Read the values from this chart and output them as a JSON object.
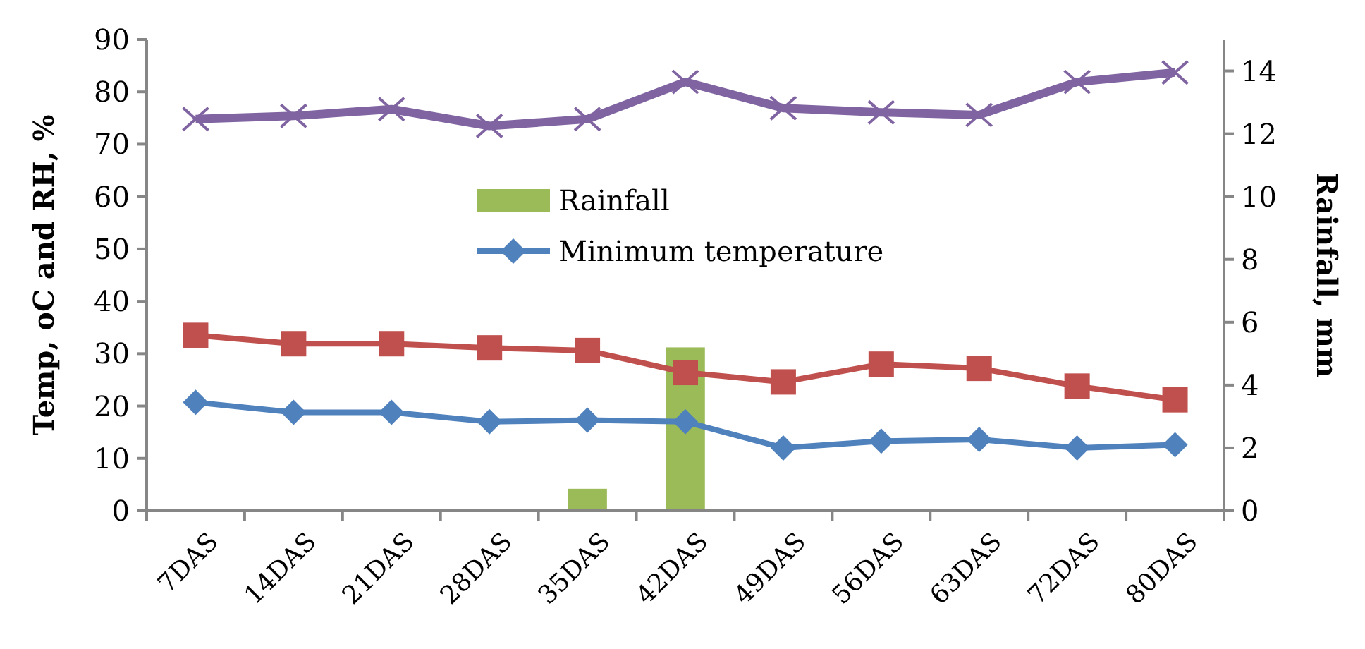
{
  "chart_data": {
    "type": "line",
    "categories": [
      "7DAS",
      "14DAS",
      "21DAS",
      "28DAS",
      "35DAS",
      "42DAS",
      "49DAS",
      "56DAS",
      "63DAS",
      "72DAS",
      "80DAS"
    ],
    "ylabel": "Temp, oC and RH, %",
    "y2label": "Rainfall, mm",
    "ylim": [
      0,
      90
    ],
    "yticks": [
      0,
      10,
      20,
      30,
      40,
      50,
      60,
      70,
      80,
      90
    ],
    "y2lim": [
      0,
      15
    ],
    "y2ticks": [
      0,
      2,
      4,
      6,
      8,
      10,
      12,
      14
    ],
    "legend": "top",
    "grid": false,
    "series": [
      {
        "name": "Rainfall",
        "type": "bar",
        "axis": "y2",
        "color": "#9bbb59",
        "values": [
          0,
          0,
          0,
          0,
          0.7,
          5.2,
          0,
          0,
          0,
          0,
          0
        ]
      },
      {
        "name": "Minimum temperature",
        "color": "#4f81bd",
        "marker": "diamond",
        "values": [
          20.7,
          18.8,
          18.8,
          17.0,
          17.3,
          17.0,
          12.0,
          13.3,
          13.6,
          12.0,
          12.6
        ]
      },
      {
        "color": "#c0504d",
        "marker": "square",
        "values": [
          33.5,
          31.9,
          31.9,
          31.1,
          30.6,
          26.4,
          24.6,
          28.0,
          27.2,
          23.8,
          21.2
        ]
      },
      {
        "color": "#8064a2",
        "marker": "cross",
        "values": [
          74.8,
          75.4,
          76.7,
          73.5,
          74.8,
          81.9,
          76.9,
          76.1,
          75.6,
          81.9,
          83.7
        ]
      }
    ]
  }
}
